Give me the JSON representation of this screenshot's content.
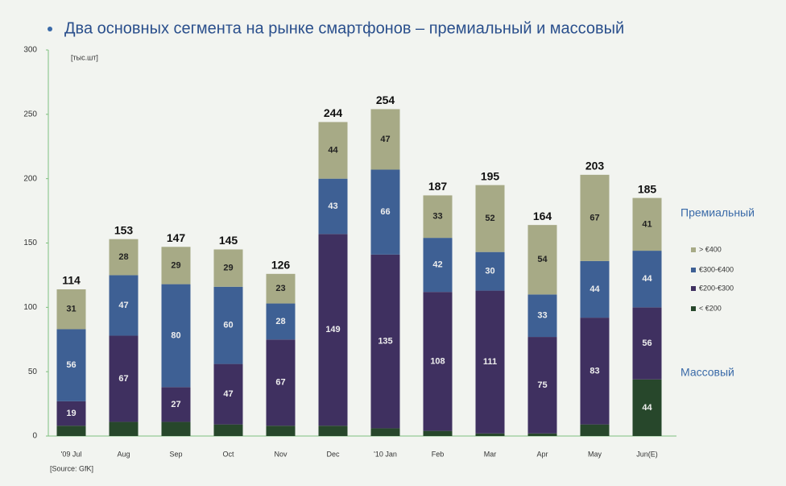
{
  "chart_data": {
    "type": "stacked-bar",
    "title": "Два основных сегмента на рынке смартфонов – премиальный и массовый",
    "unit_label": "[тыс.шт]",
    "source": "[Source: GfK]",
    "categories": [
      "'09 Jul",
      "Aug",
      "Sep",
      "Oct",
      "Nov",
      "Dec",
      "'10 Jan",
      "Feb",
      "Mar",
      "Apr",
      "May",
      "Jun(E)"
    ],
    "totals": [
      114,
      153,
      147,
      145,
      126,
      244,
      254,
      187,
      195,
      164,
      203,
      185
    ],
    "series": [
      {
        "name": "< €200",
        "color": "#27472b",
        "values": [
          8,
          11,
          11,
          9,
          8,
          8,
          6,
          4,
          2,
          2,
          9,
          44
        ]
      },
      {
        "name": "€200-€300",
        "color": "#3f3060",
        "values": [
          19,
          67,
          27,
          47,
          67,
          149,
          135,
          108,
          111,
          75,
          83,
          56
        ]
      },
      {
        "name": "€300-€400",
        "color": "#3e6094",
        "values": [
          56,
          47,
          80,
          60,
          28,
          43,
          66,
          42,
          30,
          33,
          44,
          44
        ]
      },
      {
        "name": "> €400",
        "color": "#a7aa86",
        "values": [
          31,
          28,
          29,
          29,
          23,
          44,
          47,
          33,
          52,
          54,
          67,
          41
        ]
      }
    ],
    "segment_labels": [
      "Премиальный",
      "Массовый"
    ],
    "ylim": [
      0,
      300
    ],
    "yticks": [
      0,
      50,
      100,
      150,
      200,
      250,
      300
    ]
  }
}
